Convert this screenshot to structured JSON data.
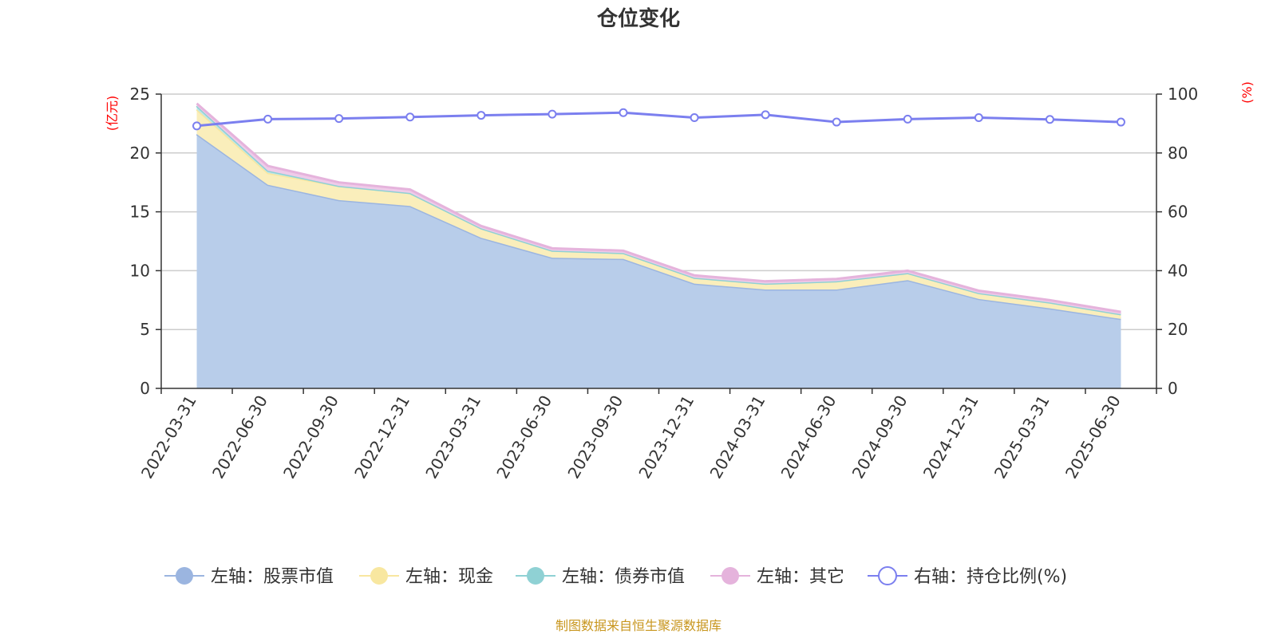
{
  "chart_data": {
    "type": "area",
    "title": "仓位变化",
    "left_axis_unit": "(亿元)",
    "right_axis_unit": "(%)",
    "categories": [
      "2022-03-31",
      "2022-06-30",
      "2022-09-30",
      "2022-12-31",
      "2023-03-31",
      "2023-06-30",
      "2023-09-30",
      "2023-12-31",
      "2024-03-31",
      "2024-06-30",
      "2024-09-30",
      "2024-12-31",
      "2025-03-31",
      "2025-06-30"
    ],
    "left_ylim": [
      0,
      25
    ],
    "left_yticks": [
      0,
      5,
      10,
      15,
      20,
      25
    ],
    "right_ylim": [
      0,
      100
    ],
    "right_yticks": [
      0,
      20,
      40,
      60,
      80,
      100
    ],
    "stacked": true,
    "grid": true,
    "legend_position": "bottom",
    "series": [
      {
        "name": "左轴：股票市值",
        "axis": "left",
        "type": "area",
        "color": "#9bb5e0",
        "fill": "#b8cdea",
        "values": [
          21.6,
          17.3,
          16.0,
          15.5,
          12.8,
          11.1,
          11.0,
          8.9,
          8.4,
          8.4,
          9.2,
          7.6,
          6.8,
          5.9
        ]
      },
      {
        "name": "左轴：现金",
        "axis": "left",
        "type": "area",
        "color": "#f8e7a0",
        "fill": "#faeebb",
        "values": [
          2.1,
          1.0,
          1.2,
          1.1,
          0.8,
          0.6,
          0.5,
          0.5,
          0.5,
          0.7,
          0.6,
          0.5,
          0.5,
          0.4
        ]
      },
      {
        "name": "左轴：债券市值",
        "axis": "left",
        "type": "area",
        "color": "#8fd1d4",
        "fill": "#bfe6e8",
        "values": [
          0.3,
          0.2,
          0.0,
          0.0,
          0.0,
          0.0,
          0.0,
          0.0,
          0.0,
          0.0,
          0.0,
          0.0,
          0.0,
          0.0
        ]
      },
      {
        "name": "左轴：其它",
        "axis": "left",
        "type": "area",
        "color": "#e5b3dc",
        "fill": "#efcbe9",
        "values": [
          0.2,
          0.4,
          0.3,
          0.3,
          0.2,
          0.2,
          0.2,
          0.2,
          0.2,
          0.2,
          0.2,
          0.2,
          0.2,
          0.2
        ]
      },
      {
        "name": "右轴：持仓比例(%)",
        "axis": "right",
        "type": "line",
        "color": "#7b7fef",
        "values": [
          89.2,
          91.5,
          91.7,
          92.2,
          92.8,
          93.2,
          93.7,
          92.0,
          93.0,
          90.5,
          91.5,
          92.0,
          91.4,
          90.5
        ]
      }
    ]
  },
  "footer": {
    "source": "制图数据来自恒生聚源数据库"
  }
}
